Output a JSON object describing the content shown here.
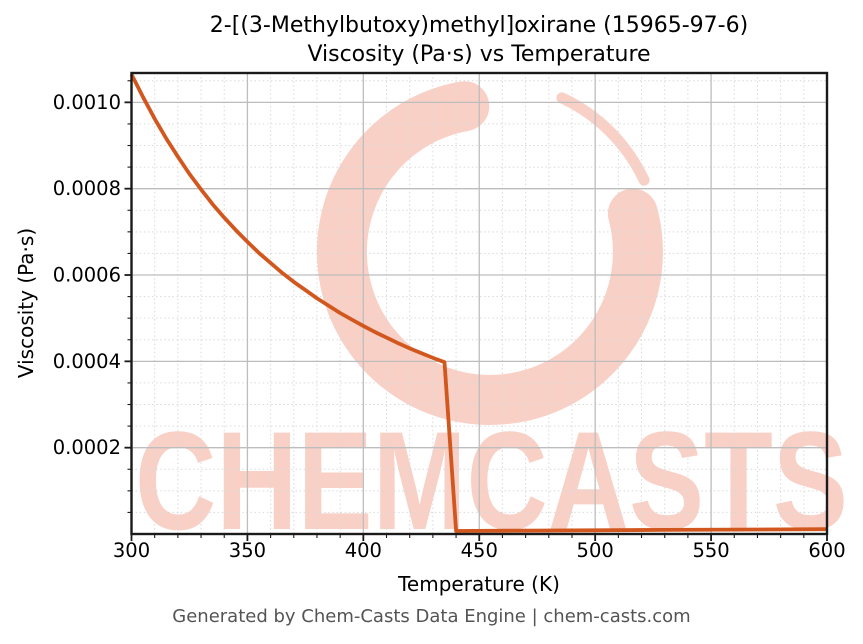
{
  "title": {
    "line1": "2-[(3-Methylbutoxy)methyl]oxirane (15965-97-6)",
    "line2": "Viscosity (Pa·s) vs Temperature"
  },
  "chart_data": {
    "type": "line",
    "title": "2-[(3-Methylbutoxy)methyl]oxirane (15965-97-6) Viscosity (Pa·s) vs Temperature",
    "xlabel": "Temperature (K)",
    "ylabel": "Viscosity (Pa·s)",
    "xlim": [
      300,
      600
    ],
    "ylim": [
      0,
      0.001068
    ],
    "grid": true,
    "legend": false,
    "x_major_ticks": [
      300,
      350,
      400,
      450,
      500,
      550,
      600
    ],
    "x_tick_labels": [
      "300",
      "350",
      "400",
      "450",
      "500",
      "550",
      "600"
    ],
    "x_minor_step": 10,
    "y_major_ticks": [
      0.0002,
      0.0004,
      0.0006,
      0.0008,
      0.001
    ],
    "y_tick_labels": [
      "0.0002",
      "0.0004",
      "0.0006",
      "0.0008",
      "0.0010"
    ],
    "y_minor_step": 5e-05,
    "line_color": "#d2571e",
    "series": [
      {
        "name": "viscosity",
        "x": [
          300,
          305,
          310,
          315,
          320,
          325,
          330,
          335,
          340,
          345,
          350,
          355,
          360,
          365,
          370,
          375,
          380,
          385,
          390,
          395,
          400,
          405,
          410,
          415,
          420,
          425,
          430,
          435,
          440,
          470,
          500,
          530,
          560,
          600
        ],
        "y": [
          0.001065,
          0.001012,
          0.000962,
          0.000916,
          0.000874,
          0.000834,
          0.000798,
          0.000764,
          0.000733,
          0.000704,
          0.000677,
          0.000651,
          0.000628,
          0.000605,
          0.000584,
          0.000565,
          0.000546,
          0.000529,
          0.000512,
          0.000497,
          0.000482,
          0.000468,
          0.000455,
          0.000442,
          0.00043,
          0.000419,
          0.000408,
          0.000398,
          7e-06,
          7.8e-06,
          8.6e-06,
          9.4e-06,
          1.02e-05,
          1.12e-05
        ]
      }
    ]
  },
  "watermark": {
    "text": "CHEMCASTS",
    "color": "#f8d0c6"
  },
  "footer": {
    "text": "Generated by Chem-Casts Data Engine | chem-casts.com"
  }
}
